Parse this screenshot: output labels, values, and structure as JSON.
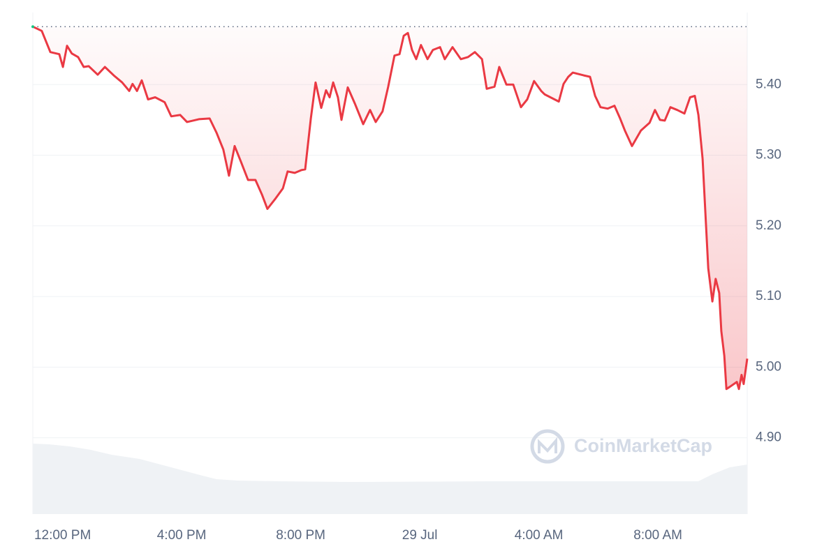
{
  "chart_data": {
    "type": "line",
    "watermark": "CoinMarketCap",
    "x": [
      -1.0,
      -0.7,
      -0.41,
      -0.11,
      0.01,
      0.15,
      0.31,
      0.52,
      0.71,
      0.88,
      1.18,
      1.42,
      1.72,
      2.0,
      2.24,
      2.35,
      2.5,
      2.66,
      2.87,
      3.11,
      3.43,
      3.65,
      3.95,
      4.18,
      4.58,
      4.94,
      5.17,
      5.4,
      5.59,
      5.78,
      5.99,
      6.23,
      6.48,
      6.7,
      6.88,
      7.16,
      7.4,
      7.56,
      7.8,
      8.03,
      8.15,
      8.34,
      8.5,
      8.69,
      8.85,
      8.97,
      9.09,
      9.25,
      9.37,
      9.58,
      9.82,
      10.1,
      10.33,
      10.52,
      10.75,
      10.94,
      11.15,
      11.32,
      11.46,
      11.6,
      11.74,
      11.88,
      12.04,
      12.26,
      12.44,
      12.68,
      12.84,
      13.1,
      13.38,
      13.62,
      13.85,
      14.09,
      14.25,
      14.51,
      14.67,
      14.91,
      15.14,
      15.4,
      15.61,
      15.84,
      16.08,
      16.2,
      16.67,
      16.83,
      16.99,
      17.14,
      17.51,
      17.72,
      17.89,
      18.07,
      18.31,
      18.54,
      18.73,
      18.89,
      19.13,
      19.43,
      19.72,
      19.9,
      20.07,
      20.23,
      20.42,
      20.65,
      20.89,
      21.08,
      21.24,
      21.36,
      21.5,
      21.69,
      21.83,
      21.94,
      22.06,
      22.13,
      22.23,
      22.3,
      22.41,
      22.65,
      22.72,
      22.81,
      22.88,
      23.0
    ],
    "series": [
      {
        "color": "#ea3943",
        "values": [
          5.482,
          5.476,
          5.446,
          5.443,
          5.425,
          5.455,
          5.444,
          5.439,
          5.425,
          5.426,
          5.414,
          5.425,
          5.413,
          5.403,
          5.391,
          5.401,
          5.391,
          5.406,
          5.379,
          5.382,
          5.375,
          5.355,
          5.357,
          5.347,
          5.351,
          5.352,
          5.332,
          5.308,
          5.271,
          5.313,
          5.291,
          5.265,
          5.265,
          5.244,
          5.224,
          5.239,
          5.253,
          5.277,
          5.275,
          5.279,
          5.28,
          5.352,
          5.403,
          5.367,
          5.392,
          5.382,
          5.403,
          5.382,
          5.35,
          5.396,
          5.373,
          5.344,
          5.364,
          5.347,
          5.362,
          5.397,
          5.441,
          5.443,
          5.469,
          5.473,
          5.449,
          5.436,
          5.456,
          5.436,
          5.449,
          5.453,
          5.436,
          5.453,
          5.436,
          5.439,
          5.446,
          5.436,
          5.394,
          5.397,
          5.425,
          5.4,
          5.4,
          5.368,
          5.379,
          5.405,
          5.391,
          5.386,
          5.376,
          5.401,
          5.411,
          5.417,
          5.413,
          5.411,
          5.384,
          5.368,
          5.366,
          5.37,
          5.352,
          5.335,
          5.313,
          5.335,
          5.346,
          5.364,
          5.35,
          5.349,
          5.368,
          5.364,
          5.359,
          5.382,
          5.384,
          5.357,
          5.295,
          5.14,
          5.093,
          5.125,
          5.105,
          5.051,
          5.016,
          4.969,
          4.972,
          4.979,
          4.969,
          4.989,
          4.976,
          5.012
        ]
      }
    ],
    "baseline": 5.482,
    "xlim": [
      -1,
      23
    ],
    "xticks": [
      {
        "value": 0,
        "label": "12:00 PM"
      },
      {
        "value": 4,
        "label": "4:00 PM"
      },
      {
        "value": 8,
        "label": "8:00 PM"
      },
      {
        "value": 12,
        "label": "29 Jul"
      },
      {
        "value": 16,
        "label": "4:00 AM"
      },
      {
        "value": 20,
        "label": "8:00 AM"
      }
    ],
    "ylim": [
      4.79,
      5.5
    ],
    "yticks": [
      {
        "value": 4.9,
        "label": "4.90"
      },
      {
        "value": 5.0,
        "label": "5.00"
      },
      {
        "value": 5.1,
        "label": "5.10"
      },
      {
        "value": 5.2,
        "label": "5.20"
      },
      {
        "value": 5.3,
        "label": "5.30"
      },
      {
        "value": 5.4,
        "label": "5.40"
      }
    ],
    "grid": true
  }
}
